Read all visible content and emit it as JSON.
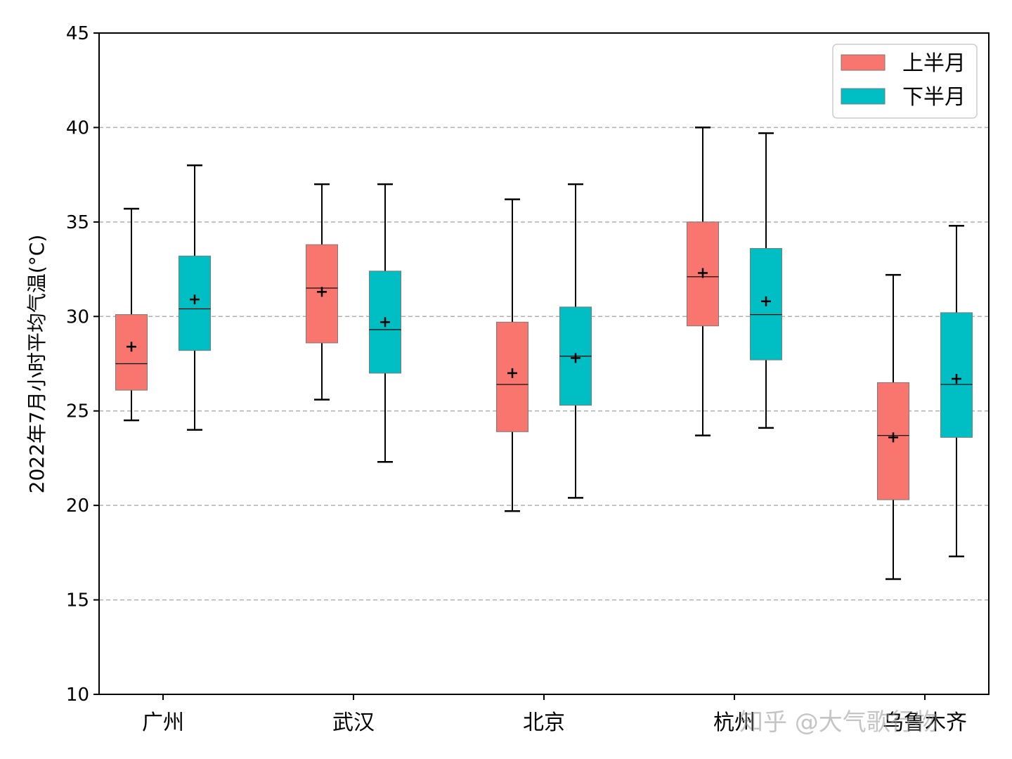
{
  "chart_data": {
    "type": "box",
    "ylabel": "2022年7月小时平均气温(°C)",
    "xlabel": "",
    "ylim": [
      10,
      45
    ],
    "yticks": [
      10,
      15,
      20,
      25,
      30,
      35,
      40,
      45
    ],
    "grid": "y-dashed",
    "legend_position": "top-right",
    "categories": [
      "广州",
      "武汉",
      "北京",
      "杭州",
      "乌鲁木齐"
    ],
    "series": [
      {
        "name": "上半月",
        "color": "#f8766d",
        "boxes": [
          {
            "min": 24.5,
            "q1": 26.1,
            "median": 27.5,
            "q3": 30.1,
            "max": 35.7,
            "mean": 28.4
          },
          {
            "min": 25.6,
            "q1": 28.6,
            "median": 31.5,
            "q3": 33.8,
            "max": 37.0,
            "mean": 31.3
          },
          {
            "min": 19.7,
            "q1": 23.9,
            "median": 26.4,
            "q3": 29.7,
            "max": 36.2,
            "mean": 27.0
          },
          {
            "min": 23.7,
            "q1": 29.5,
            "median": 32.1,
            "q3": 35.0,
            "max": 40.0,
            "mean": 32.3
          },
          {
            "min": 16.1,
            "q1": 20.3,
            "median": 23.7,
            "q3": 26.5,
            "max": 32.2,
            "mean": 23.6
          }
        ]
      },
      {
        "name": "下半月",
        "color": "#00bfc4",
        "boxes": [
          {
            "min": 24.0,
            "q1": 28.2,
            "median": 30.4,
            "q3": 33.2,
            "max": 38.0,
            "mean": 30.9
          },
          {
            "min": 22.3,
            "q1": 27.0,
            "median": 29.3,
            "q3": 32.4,
            "max": 37.0,
            "mean": 29.7
          },
          {
            "min": 20.4,
            "q1": 25.3,
            "median": 27.9,
            "q3": 30.5,
            "max": 37.0,
            "mean": 27.8
          },
          {
            "min": 24.1,
            "q1": 27.7,
            "median": 30.1,
            "q3": 33.6,
            "max": 39.7,
            "mean": 30.8
          },
          {
            "min": 17.3,
            "q1": 23.6,
            "median": 26.4,
            "q3": 30.2,
            "max": 34.8,
            "mean": 26.7
          }
        ]
      }
    ]
  },
  "watermark": "知乎 @大气歌行物"
}
